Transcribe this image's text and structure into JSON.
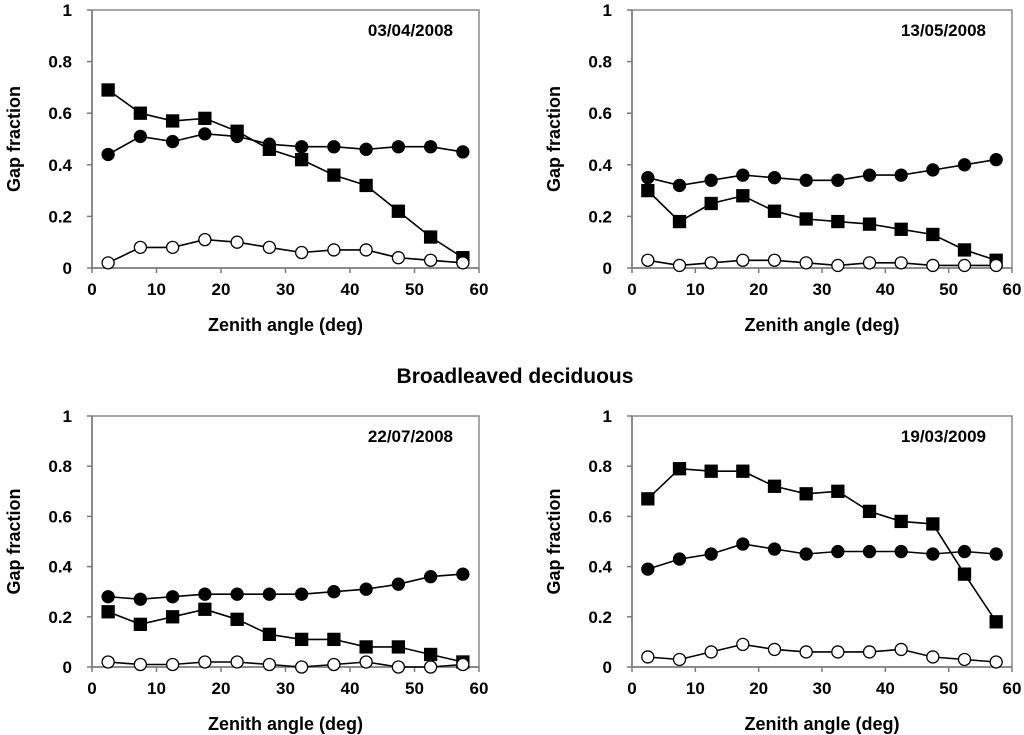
{
  "heading": "Broadleaved deciduous",
  "chart_data": [
    {
      "type": "line",
      "date_label": "03/04/2008",
      "xlabel": "Zenith angle (deg)",
      "ylabel": "Gap fraction",
      "xlim": [
        0,
        60
      ],
      "ylim": [
        0,
        1
      ],
      "x_ticks": [
        0,
        10,
        20,
        30,
        40,
        50,
        60
      ],
      "y_ticks": [
        0,
        0.2,
        0.4,
        0.6,
        0.8,
        1
      ],
      "y_tick_labels": [
        "0",
        "0.2",
        "0.4",
        "0.6",
        "0.8",
        "1"
      ],
      "x": [
        2.5,
        7.5,
        12.5,
        17.5,
        22.5,
        27.5,
        32.5,
        37.5,
        42.5,
        47.5,
        52.5,
        57.5
      ],
      "series": [
        {
          "name": "filled-square",
          "marker": "square",
          "fill": "#000000",
          "values": [
            0.69,
            0.6,
            0.57,
            0.58,
            0.53,
            0.46,
            0.42,
            0.36,
            0.32,
            0.22,
            0.12,
            0.04
          ]
        },
        {
          "name": "filled-circle",
          "marker": "circle",
          "fill": "#000000",
          "values": [
            0.44,
            0.51,
            0.49,
            0.52,
            0.51,
            0.48,
            0.47,
            0.47,
            0.46,
            0.47,
            0.47,
            0.45
          ]
        },
        {
          "name": "open-circle",
          "marker": "circle",
          "fill": "#ffffff",
          "values": [
            0.02,
            0.08,
            0.08,
            0.11,
            0.1,
            0.08,
            0.06,
            0.07,
            0.07,
            0.04,
            0.03,
            0.02
          ]
        }
      ]
    },
    {
      "type": "line",
      "date_label": "13/05/2008",
      "xlabel": "Zenith angle (deg)",
      "ylabel": "Gap fraction",
      "xlim": [
        0,
        60
      ],
      "ylim": [
        0,
        1
      ],
      "x_ticks": [
        0,
        10,
        20,
        30,
        40,
        50,
        60
      ],
      "y_ticks": [
        0,
        0.2,
        0.4,
        0.6,
        0.8,
        1
      ],
      "y_tick_labels": [
        "0",
        "0.2",
        "0.4",
        "0.6",
        "0.8",
        "1"
      ],
      "x": [
        2.5,
        7.5,
        12.5,
        17.5,
        22.5,
        27.5,
        32.5,
        37.5,
        42.5,
        47.5,
        52.5,
        57.5
      ],
      "series": [
        {
          "name": "filled-square",
          "marker": "square",
          "fill": "#000000",
          "values": [
            0.3,
            0.18,
            0.25,
            0.28,
            0.22,
            0.19,
            0.18,
            0.17,
            0.15,
            0.13,
            0.07,
            0.03
          ]
        },
        {
          "name": "filled-circle",
          "marker": "circle",
          "fill": "#000000",
          "values": [
            0.35,
            0.32,
            0.34,
            0.36,
            0.35,
            0.34,
            0.34,
            0.36,
            0.36,
            0.38,
            0.4,
            0.42
          ]
        },
        {
          "name": "open-circle",
          "marker": "circle",
          "fill": "#ffffff",
          "values": [
            0.03,
            0.01,
            0.02,
            0.03,
            0.03,
            0.02,
            0.01,
            0.02,
            0.02,
            0.01,
            0.01,
            0.01
          ]
        }
      ]
    },
    {
      "type": "line",
      "date_label": "22/07/2008",
      "xlabel": "Zenith angle (deg)",
      "ylabel": "Gap fraction",
      "xlim": [
        0,
        60
      ],
      "ylim": [
        0,
        1
      ],
      "x_ticks": [
        0,
        10,
        20,
        30,
        40,
        50,
        60
      ],
      "y_ticks": [
        0,
        0.2,
        0.4,
        0.6,
        0.8,
        1
      ],
      "y_tick_labels": [
        "0",
        "0.2",
        "0.4",
        "0.6",
        "0.8",
        "1"
      ],
      "x": [
        2.5,
        7.5,
        12.5,
        17.5,
        22.5,
        27.5,
        32.5,
        37.5,
        42.5,
        47.5,
        52.5,
        57.5
      ],
      "series": [
        {
          "name": "filled-square",
          "marker": "square",
          "fill": "#000000",
          "values": [
            0.22,
            0.17,
            0.2,
            0.23,
            0.19,
            0.13,
            0.11,
            0.11,
            0.08,
            0.08,
            0.05,
            0.02
          ]
        },
        {
          "name": "filled-circle",
          "marker": "circle",
          "fill": "#000000",
          "values": [
            0.28,
            0.27,
            0.28,
            0.29,
            0.29,
            0.29,
            0.29,
            0.3,
            0.31,
            0.33,
            0.36,
            0.37
          ]
        },
        {
          "name": "open-circle",
          "marker": "circle",
          "fill": "#ffffff",
          "values": [
            0.02,
            0.01,
            0.01,
            0.02,
            0.02,
            0.01,
            0.0,
            0.01,
            0.02,
            0.0,
            0.0,
            0.01
          ]
        }
      ]
    },
    {
      "type": "line",
      "date_label": "19/03/2009",
      "xlabel": "Zenith angle (deg)",
      "ylabel": "Gap fraction",
      "xlim": [
        0,
        60
      ],
      "ylim": [
        0,
        1
      ],
      "x_ticks": [
        0,
        10,
        20,
        30,
        40,
        50,
        60
      ],
      "y_ticks": [
        0,
        0.2,
        0.4,
        0.6,
        0.8,
        1
      ],
      "y_tick_labels": [
        "0",
        "0.2",
        "0.4",
        "0.6",
        "0.8",
        "1"
      ],
      "x": [
        2.5,
        7.5,
        12.5,
        17.5,
        22.5,
        27.5,
        32.5,
        37.5,
        42.5,
        47.5,
        52.5,
        57.5
      ],
      "series": [
        {
          "name": "filled-square",
          "marker": "square",
          "fill": "#000000",
          "values": [
            0.67,
            0.79,
            0.78,
            0.78,
            0.72,
            0.69,
            0.7,
            0.62,
            0.58,
            0.57,
            0.37,
            0.18
          ]
        },
        {
          "name": "filled-circle",
          "marker": "circle",
          "fill": "#000000",
          "values": [
            0.39,
            0.43,
            0.45,
            0.49,
            0.47,
            0.45,
            0.46,
            0.46,
            0.46,
            0.45,
            0.46,
            0.45
          ]
        },
        {
          "name": "open-circle",
          "marker": "circle",
          "fill": "#ffffff",
          "values": [
            0.04,
            0.03,
            0.06,
            0.09,
            0.07,
            0.06,
            0.06,
            0.06,
            0.07,
            0.04,
            0.03,
            0.02
          ]
        }
      ]
    }
  ]
}
